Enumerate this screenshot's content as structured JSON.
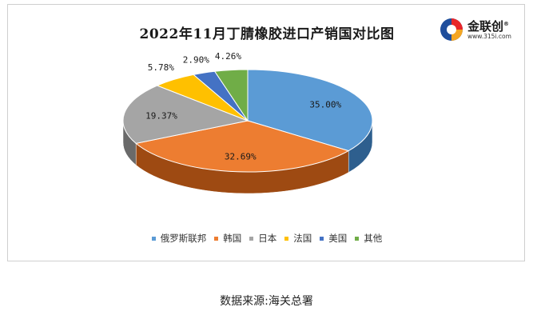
{
  "chart_data": {
    "type": "pie",
    "title": "2022年11月丁腈橡胶进口产销国对比图",
    "categories": [
      "俄罗斯联邦",
      "韩国",
      "日本",
      "法国",
      "美国",
      "其他"
    ],
    "values": [
      35.0,
      32.69,
      19.37,
      5.78,
      2.9,
      4.26
    ],
    "data_labels": [
      "35.00%",
      "32.69%",
      "19.37%",
      "5.78%",
      "2.90%",
      "4.26%"
    ],
    "colors": [
      "#5b9bd5",
      "#ed7d31",
      "#a5a5a5",
      "#ffc000",
      "#4472c4",
      "#70ad47"
    ],
    "side_colors": [
      "#2e5f8e",
      "#9e4a12",
      "#6a6a6a",
      "#b08600",
      "#2a4a8a",
      "#4a7a2e"
    ],
    "legend_position": "bottom",
    "style": "3d-pie"
  },
  "logo": {
    "name": "金联创",
    "url": "www.315i.com",
    "registered_mark": "®"
  },
  "source_note": "数据来源:海关总署"
}
